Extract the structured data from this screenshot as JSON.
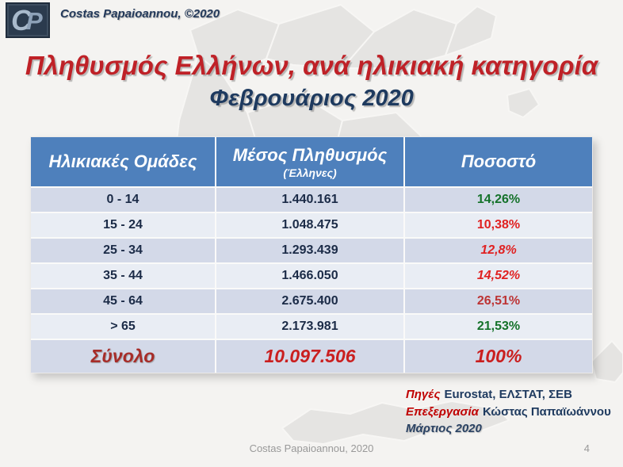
{
  "brand": {
    "logo_c": "C",
    "logo_p": "P",
    "copyright": "Costas Papaioannou, ©2020"
  },
  "title": "Πληθυσμός Ελλήνων, ανά ηλικιακή κατηγορία",
  "subtitle": "Φεβρουάριος 2020",
  "colors": {
    "header_blue": "#4e80bc",
    "row_dark": "#d3d9e8",
    "row_light": "#e9edf4",
    "title_red": "#bf2127",
    "navy": "#1e3a5f",
    "percent_green": "#15722a",
    "percent_red": "#e02222",
    "percent_darkred": "#bd3434",
    "total_red": "#ca1f1f"
  },
  "chart_data": {
    "type": "table",
    "title": "Πληθυσμός Ελλήνων, ανά ηλικιακή κατηγορία — Φεβρουάριος 2020",
    "columns": [
      "Ηλικιακές Ομάδες",
      "Μέσος Πληθυσμός (Έλληνες)",
      "Ποσοστό"
    ],
    "rows": [
      [
        "0 - 14",
        1440161,
        "14,26%"
      ],
      [
        "15 - 24",
        1048475,
        "10,38%"
      ],
      [
        "25 - 34",
        1293439,
        "12,8%"
      ],
      [
        "35 - 44",
        1466050,
        "14,52%"
      ],
      [
        "45 - 64",
        2675400,
        "26,51%"
      ],
      [
        "> 65",
        2173981,
        "21,53%"
      ]
    ],
    "total": [
      "Σύνολο",
      10097506,
      "100%"
    ]
  },
  "table": {
    "headers": [
      {
        "label": "Ηλικιακές Ομάδες"
      },
      {
        "label": "Μέσος Πληθυσμός",
        "sublabel": "(Έλληνες)"
      },
      {
        "label": "Ποσοστό"
      }
    ],
    "rows": [
      {
        "group": "0 - 14",
        "population": "1.440.161",
        "percent": "14,26%",
        "percent_class": "pct-green"
      },
      {
        "group": "15 - 24",
        "population": "1.048.475",
        "percent": "10,38%",
        "percent_class": "pct-red"
      },
      {
        "group": "25 - 34",
        "population": "1.293.439",
        "percent": "12,8%",
        "percent_class": "pct-red-it"
      },
      {
        "group": "35 - 44",
        "population": "1.466.050",
        "percent": "14,52%",
        "percent_class": "pct-red-it"
      },
      {
        "group": "45 - 64",
        "population": "2.675.400",
        "percent": "26,51%",
        "percent_class": "pct-darkred"
      },
      {
        "group": "> 65",
        "population": "2.173.981",
        "percent": "21,53%",
        "percent_class": "pct-green"
      }
    ],
    "total": {
      "label": "Σύνολο",
      "population": "10.097.506",
      "percent": "100%"
    }
  },
  "sources": {
    "line1_em": "Πηγές",
    "line1_rest": "Eurostat, ΕΛΣΤΑΤ, ΣΕΒ",
    "line2_em": "Επεξεργασία",
    "line2_rest": "Κώστας Παπαϊωάννου",
    "line3": "Μάρτιος 2020"
  },
  "footer": {
    "credit": "Costas Papaioannou, 2020",
    "page": "4"
  }
}
